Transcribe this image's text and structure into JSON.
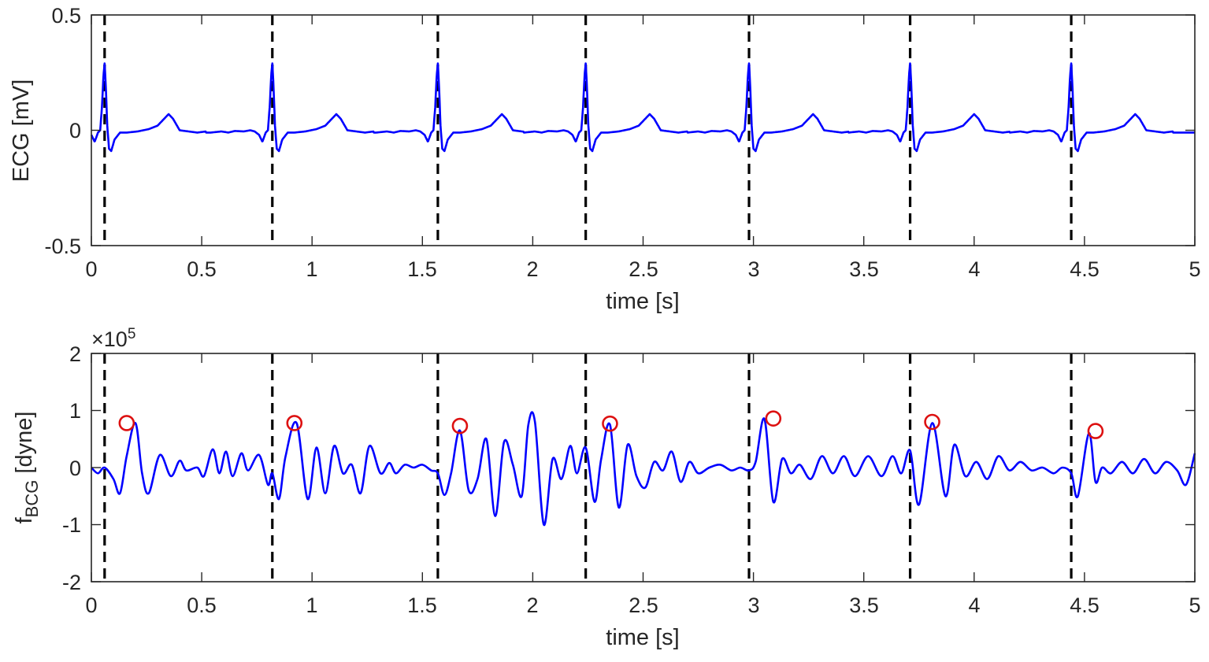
{
  "chart_data": [
    {
      "type": "line",
      "xlabel": "time [s]",
      "ylabel": "ECG [mV]",
      "xlim": [
        0,
        5
      ],
      "ylim": [
        -0.5,
        0.5
      ],
      "xticks": [
        "0",
        "0.5",
        "1",
        "1.5",
        "2",
        "2.5",
        "3",
        "3.5",
        "4",
        "4.5",
        "5"
      ],
      "yticks": [
        "-0.5",
        "0",
        "0.5"
      ],
      "line_color": "#0000ff",
      "marker_line_color": "#000000",
      "r_peak_times": [
        0.06,
        0.82,
        1.57,
        2.24,
        2.98,
        3.71,
        4.44
      ],
      "beat_waveform": {
        "t_offset": [
          -0.28,
          -0.23,
          -0.2,
          -0.17,
          -0.13,
          -0.1,
          -0.08,
          -0.06,
          -0.045,
          -0.03,
          -0.02,
          -0.012,
          -0.005,
          0.0,
          0.005,
          0.012,
          0.02,
          0.03,
          0.045,
          0.07,
          0.1,
          0.15,
          0.2,
          0.24,
          0.27,
          0.29,
          0.31,
          0.34,
          0.38,
          0.42,
          0.46
        ],
        "value": [
          -0.01,
          -0.005,
          -0.01,
          -0.003,
          -0.005,
          0.0,
          -0.005,
          -0.02,
          -0.05,
          -0.01,
          0.0,
          0.1,
          0.24,
          0.29,
          0.2,
          0.02,
          -0.08,
          -0.09,
          -0.04,
          -0.01,
          -0.01,
          -0.005,
          0.005,
          0.02,
          0.05,
          0.07,
          0.05,
          0.0,
          -0.005,
          -0.01,
          -0.005
        ]
      }
    },
    {
      "type": "line",
      "xlabel": "time [s]",
      "ylabel": "f",
      "ylabel_subscript": "BCG",
      "ylabel_unit": " [dyne]",
      "exponent_base": "×10",
      "exponent_power": "5",
      "xlim": [
        0,
        5
      ],
      "ylim": [
        -2,
        2
      ],
      "xticks": [
        "0",
        "0.5",
        "1",
        "1.5",
        "2",
        "2.5",
        "3",
        "3.5",
        "4",
        "4.5",
        "5"
      ],
      "yticks": [
        "-2",
        "-1",
        "0",
        "1",
        "2"
      ],
      "line_color": "#0000ff",
      "marker_line_color": "#000000",
      "peak_marker_color": "#dd1111",
      "r_peak_times": [
        0.06,
        0.82,
        1.57,
        2.24,
        2.98,
        3.71,
        4.44
      ],
      "x": [
        0.0,
        0.03,
        0.06,
        0.1,
        0.13,
        0.16,
        0.2,
        0.23,
        0.26,
        0.31,
        0.36,
        0.4,
        0.43,
        0.48,
        0.51,
        0.55,
        0.58,
        0.61,
        0.64,
        0.68,
        0.71,
        0.76,
        0.8,
        0.82,
        0.85,
        0.88,
        0.93,
        0.98,
        1.02,
        1.06,
        1.1,
        1.14,
        1.18,
        1.22,
        1.26,
        1.31,
        1.35,
        1.38,
        1.42,
        1.46,
        1.5,
        1.54,
        1.57,
        1.6,
        1.63,
        1.67,
        1.71,
        1.75,
        1.79,
        1.83,
        1.87,
        1.91,
        1.95,
        1.98,
        2.01,
        2.05,
        2.09,
        2.13,
        2.17,
        2.2,
        2.24,
        2.28,
        2.31,
        2.35,
        2.39,
        2.43,
        2.47,
        2.51,
        2.55,
        2.59,
        2.63,
        2.67,
        2.71,
        2.75,
        2.8,
        2.85,
        2.9,
        2.94,
        2.98,
        3.01,
        3.05,
        3.09,
        3.13,
        3.17,
        3.21,
        3.26,
        3.31,
        3.36,
        3.41,
        3.46,
        3.52,
        3.58,
        3.63,
        3.67,
        3.71,
        3.75,
        3.81,
        3.87,
        3.91,
        3.96,
        4.01,
        4.06,
        4.11,
        4.16,
        4.21,
        4.26,
        4.31,
        4.36,
        4.4,
        4.44,
        4.47,
        4.52,
        4.55,
        4.58,
        4.62,
        4.67,
        4.72,
        4.77,
        4.82,
        4.87,
        4.92,
        4.96,
        5.0
      ],
      "y": [
        0.0,
        -0.1,
        0.0,
        -0.2,
        -0.45,
        0.2,
        0.78,
        -0.1,
        -0.45,
        0.22,
        -0.15,
        0.12,
        -0.05,
        0.0,
        -0.15,
        0.32,
        -0.1,
        0.28,
        -0.15,
        0.25,
        -0.05,
        0.22,
        -0.3,
        -0.1,
        -0.55,
        0.2,
        0.78,
        -0.55,
        0.35,
        -0.45,
        0.38,
        -0.1,
        0.05,
        -0.45,
        0.38,
        -0.1,
        0.08,
        -0.1,
        0.05,
        0.0,
        0.05,
        -0.05,
        -0.1,
        -0.48,
        -0.1,
        0.65,
        -0.4,
        -0.2,
        0.5,
        -0.85,
        0.45,
        0.05,
        -0.5,
        0.75,
        0.8,
        -1.0,
        0.15,
        -0.2,
        0.38,
        -0.1,
        0.35,
        -0.6,
        0.15,
        0.75,
        -0.7,
        0.4,
        -0.15,
        -0.35,
        0.1,
        -0.05,
        0.28,
        -0.25,
        0.1,
        -0.1,
        0.0,
        0.05,
        -0.05,
        0.0,
        -0.05,
        0.1,
        0.85,
        -0.6,
        0.15,
        -0.1,
        0.05,
        -0.2,
        0.2,
        -0.1,
        0.2,
        -0.15,
        0.2,
        -0.15,
        0.2,
        -0.1,
        0.3,
        -0.65,
        0.78,
        -0.5,
        0.4,
        -0.15,
        0.1,
        -0.2,
        0.2,
        -0.05,
        0.1,
        -0.05,
        0.0,
        -0.1,
        0.0,
        -0.1,
        -0.5,
        0.6,
        -0.25,
        0.0,
        -0.1,
        0.1,
        -0.1,
        0.15,
        -0.1,
        0.1,
        -0.05,
        -0.3,
        0.25
      ],
      "peak_markers": [
        {
          "x": 0.16,
          "y": 0.78
        },
        {
          "x": 0.92,
          "y": 0.78
        },
        {
          "x": 1.67,
          "y": 0.73
        },
        {
          "x": 2.35,
          "y": 0.77
        },
        {
          "x": 3.09,
          "y": 0.86
        },
        {
          "x": 3.81,
          "y": 0.8
        },
        {
          "x": 4.55,
          "y": 0.64
        }
      ]
    }
  ]
}
